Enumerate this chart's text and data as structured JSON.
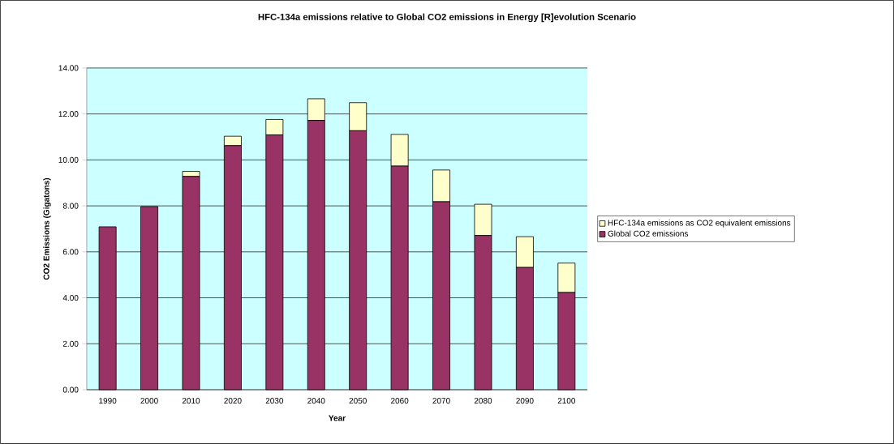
{
  "chart_data": {
    "type": "bar",
    "stacked": true,
    "title": "HFC-134a emissions relative to Global CO2 emissions in Energy [R]evolution Scenario",
    "xlabel": "Year",
    "ylabel": "CO2 Emissions (Gigatons)",
    "categories": [
      "1990",
      "2000",
      "2010",
      "2020",
      "2030",
      "2040",
      "2050",
      "2060",
      "2070",
      "2080",
      "2090",
      "2100"
    ],
    "series": [
      {
        "name": "Global CO2 emissions",
        "color": "#993366",
        "values": [
          7.09,
          7.97,
          9.28,
          10.62,
          11.09,
          11.72,
          11.27,
          9.73,
          8.18,
          6.71,
          5.32,
          4.23
        ]
      },
      {
        "name": "HFC-134a emissions as CO2 equivalent emissions",
        "color": "#ffffcc",
        "values": [
          0,
          0,
          0.22,
          0.41,
          0.67,
          0.94,
          1.22,
          1.38,
          1.38,
          1.36,
          1.34,
          1.28
        ]
      }
    ],
    "ylim": [
      0,
      14
    ],
    "yticks": [
      {
        "value": 0,
        "label": "0.00"
      },
      {
        "value": 2,
        "label": "2.00"
      },
      {
        "value": 4,
        "label": "4.00"
      },
      {
        "value": 6,
        "label": "6.00"
      },
      {
        "value": 8,
        "label": "8.00"
      },
      {
        "value": 10,
        "label": "10.00"
      },
      {
        "value": 12,
        "label": "12.00"
      },
      {
        "value": 14,
        "label": "14.00"
      }
    ],
    "grid": "y",
    "legend": "right"
  }
}
